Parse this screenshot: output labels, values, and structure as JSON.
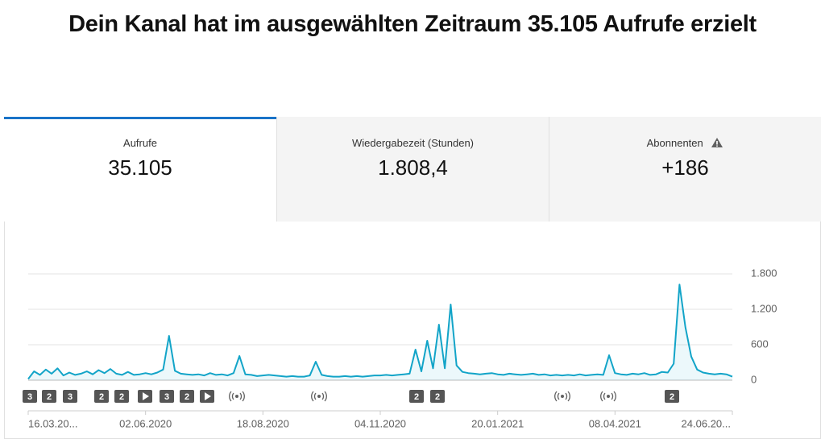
{
  "header": {
    "title": "Dein Kanal hat im ausgewählten Zeitraum 35.105 Aufrufe erzielt"
  },
  "tabs": [
    {
      "label": "Aufrufe",
      "value": "35.105"
    },
    {
      "label": "Wiedergabezeit (Stunden)",
      "value": "1.808,4"
    },
    {
      "label": "Abonnenten",
      "value": "+186"
    }
  ],
  "chart_data": {
    "type": "line",
    "color": "#12a4c8",
    "categories": [
      "16.03.20...",
      null,
      null,
      null,
      null,
      null,
      null,
      null,
      null,
      null,
      null,
      null,
      null,
      null,
      null,
      null,
      null,
      null,
      null,
      null,
      "02.06.2020",
      null,
      null,
      null,
      null,
      null,
      null,
      null,
      null,
      null,
      null,
      null,
      null,
      null,
      null,
      null,
      null,
      null,
      null,
      null,
      "18.08.2020",
      null,
      null,
      null,
      null,
      null,
      null,
      null,
      null,
      null,
      null,
      null,
      null,
      null,
      null,
      null,
      null,
      null,
      null,
      null,
      "04.11.2020",
      null,
      null,
      null,
      null,
      null,
      null,
      null,
      null,
      null,
      null,
      null,
      null,
      null,
      null,
      null,
      null,
      null,
      null,
      null,
      "20.01.2021",
      null,
      null,
      null,
      null,
      null,
      null,
      null,
      null,
      null,
      null,
      null,
      null,
      null,
      null,
      null,
      null,
      null,
      null,
      null,
      "08.04.2021",
      null,
      null,
      null,
      null,
      null,
      null,
      null,
      null,
      null,
      null,
      null,
      null,
      null,
      null,
      null,
      null,
      null,
      null,
      null,
      "24.06.20..."
    ],
    "values": [
      20,
      150,
      90,
      180,
      110,
      200,
      80,
      130,
      90,
      110,
      150,
      100,
      170,
      120,
      190,
      110,
      90,
      140,
      90,
      100,
      120,
      100,
      130,
      180,
      750,
      160,
      110,
      100,
      90,
      100,
      80,
      120,
      90,
      100,
      80,
      120,
      409,
      100,
      90,
      70,
      80,
      90,
      80,
      70,
      60,
      70,
      60,
      60,
      80,
      314,
      90,
      70,
      60,
      60,
      70,
      60,
      70,
      60,
      70,
      80,
      80,
      90,
      80,
      90,
      100,
      110,
      518,
      150,
      668,
      200,
      941,
      200,
      1282,
      250,
      140,
      120,
      110,
      100,
      110,
      120,
      100,
      90,
      110,
      100,
      90,
      100,
      110,
      90,
      100,
      80,
      90,
      80,
      90,
      80,
      100,
      80,
      90,
      100,
      90,
      423,
      120,
      100,
      90,
      110,
      100,
      120,
      90,
      100,
      140,
      130,
      280,
      1620,
      900,
      400,
      180,
      130,
      110,
      100,
      110,
      100,
      60
    ],
    "ylim": [
      0,
      1800
    ],
    "yticks": [
      0,
      600,
      {
        "value": 1200,
        "label": "1.200"
      },
      {
        "value": 1800,
        "label": "1.800"
      }
    ],
    "grid": true,
    "event_markers": [
      "3",
      "2",
      "3",
      "2",
      "2",
      "3",
      "2",
      "2",
      "2",
      "2"
    ]
  }
}
